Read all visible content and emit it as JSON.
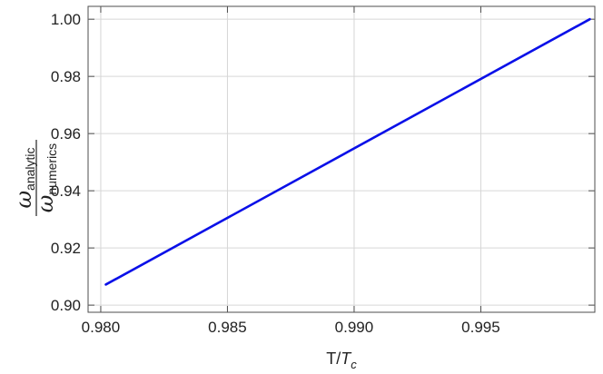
{
  "chart_data": {
    "type": "line",
    "title": "",
    "xlabel": {
      "main": "T/",
      "italic": "T",
      "sub": "c"
    },
    "ylabel": {
      "numerator": {
        "symbol": "ω",
        "sub": "analytic"
      },
      "denominator": {
        "symbol": "ω",
        "sub": "numerics"
      }
    },
    "xlim": [
      0.9795,
      0.9995
    ],
    "ylim": [
      0.8975,
      1.0045
    ],
    "xticks": [
      0.98,
      0.985,
      0.99,
      0.995
    ],
    "xtick_labels": [
      "0.980",
      "0.985",
      "0.990",
      "0.995"
    ],
    "yticks": [
      0.9,
      0.92,
      0.94,
      0.96,
      0.98,
      1.0
    ],
    "ytick_labels": [
      "0.90",
      "0.92",
      "0.94",
      "0.96",
      "0.98",
      "1.00"
    ],
    "grid": true,
    "series": [
      {
        "color": "#0a10e8",
        "x": [
          0.9802,
          0.9993
        ],
        "y": [
          0.9072,
          1.0
        ]
      }
    ]
  }
}
